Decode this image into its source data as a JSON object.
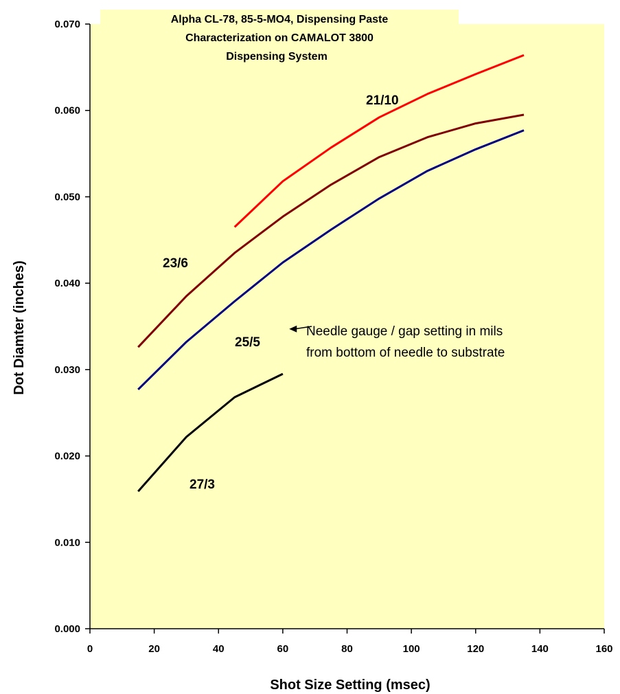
{
  "chart_data": {
    "type": "line",
    "title_lines": [
      "Alpha CL-78, 85-5-MO4, Dispensing Paste",
      "Characterization on CAMALOT 3800",
      "Dispensing System"
    ],
    "xlabel": "Shot Size Setting (msec)",
    "ylabel": "Dot Diamter  (inches)",
    "xlim": [
      0,
      160
    ],
    "ylim": [
      0,
      0.07
    ],
    "xticks": [
      0,
      20,
      40,
      60,
      80,
      100,
      120,
      140,
      160
    ],
    "xtick_labels": [
      "0",
      "20",
      "40",
      "60",
      "80",
      "100",
      "120",
      "140",
      "160"
    ],
    "yticks": [
      0,
      0.01,
      0.02,
      0.03,
      0.04,
      0.05,
      0.06,
      0.07
    ],
    "ytick_labels": [
      "0.000",
      "0.010",
      "0.020",
      "0.030",
      "0.040",
      "0.050",
      "0.060",
      "0.070"
    ],
    "grid": false,
    "legend": "none",
    "plot_background": "#ffffc0",
    "series": [
      {
        "name": "21/10",
        "color": "#ff0000",
        "x": [
          45,
          60,
          75,
          90,
          105,
          120,
          135
        ],
        "y": [
          0.0465,
          0.0518,
          0.0557,
          0.0592,
          0.0619,
          0.0642,
          0.0664
        ]
      },
      {
        "name": "23/6",
        "color": "#800000",
        "x": [
          15,
          30,
          45,
          60,
          75,
          90,
          105,
          120,
          135
        ],
        "y": [
          0.0326,
          0.0385,
          0.0435,
          0.0477,
          0.0514,
          0.0546,
          0.0569,
          0.0585,
          0.0595
        ]
      },
      {
        "name": "25/5",
        "color": "#000080",
        "x": [
          15,
          30,
          45,
          60,
          75,
          90,
          105,
          120,
          135
        ],
        "y": [
          0.0277,
          0.0332,
          0.0379,
          0.0424,
          0.0462,
          0.0498,
          0.053,
          0.0555,
          0.0577
        ]
      },
      {
        "name": "27/3",
        "color": "#000000",
        "x": [
          15,
          30,
          45,
          60
        ],
        "y": [
          0.0159,
          0.0222,
          0.0268,
          0.0295
        ]
      }
    ],
    "annotation": {
      "lines": [
        "Needle gauge / gap setting in mils",
        "from bottom of needle to substrate"
      ],
      "arrow_tip": [
        62,
        0.0347
      ],
      "arrow_tail": [
        69,
        0.035
      ]
    }
  }
}
